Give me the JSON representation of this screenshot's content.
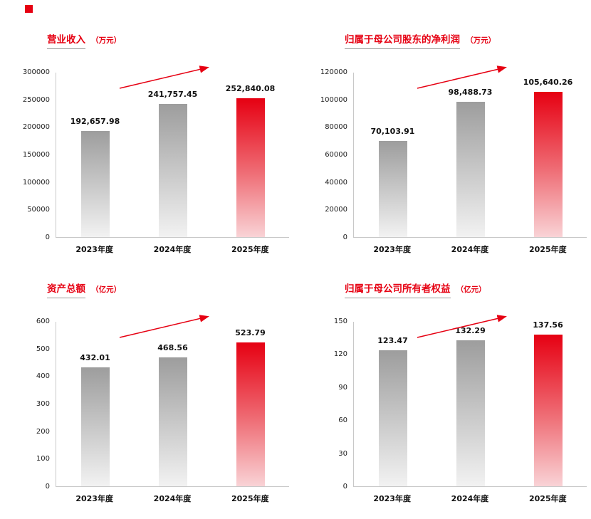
{
  "page": {
    "background": "#ffffff"
  },
  "colors": {
    "accent": "#e60012",
    "title_underline": "#9a9a9a",
    "axis_line": "#c8c8c8",
    "gray_bar_top": "#9d9d9d",
    "gray_bar_bottom": "#f2f2f2",
    "red_bar_top": "#e60012",
    "red_bar_mid": "#ef7078",
    "red_bar_bottom": "#f9d3d6",
    "label_text": "#111111"
  },
  "chart_data": [
    {
      "type": "bar",
      "title": "营业收入",
      "unit": "（万元）",
      "categories": [
        "2023年度",
        "2024年度",
        "2025年度"
      ],
      "values": [
        192657.98,
        241757.45,
        252840.08
      ],
      "value_labels": [
        "192,657.98",
        "241,757.45",
        "252,840.08"
      ],
      "ylim": [
        0,
        300000
      ],
      "yticks": [
        0,
        50000,
        100000,
        150000,
        200000,
        250000,
        300000
      ],
      "ytick_labels": [
        "0",
        "50000",
        "100000",
        "150000",
        "200000",
        "250000",
        "300000"
      ],
      "highlight_index": 2,
      "grid": false,
      "legend": false,
      "trend_arrow": true
    },
    {
      "type": "bar",
      "title": "归属于母公司股东的净利润",
      "unit": "（万元）",
      "categories": [
        "2023年度",
        "2024年度",
        "2025年度"
      ],
      "values": [
        70103.91,
        98488.73,
        105640.26
      ],
      "value_labels": [
        "70,103.91",
        "98,488.73",
        "105,640.26"
      ],
      "ylim": [
        0,
        120000
      ],
      "yticks": [
        0,
        20000,
        40000,
        60000,
        80000,
        100000,
        120000
      ],
      "ytick_labels": [
        "0",
        "20000",
        "40000",
        "60000",
        "80000",
        "100000",
        "120000"
      ],
      "highlight_index": 2,
      "grid": false,
      "legend": false,
      "trend_arrow": true
    },
    {
      "type": "bar",
      "title": "资产总额",
      "unit": "（亿元）",
      "categories": [
        "2023年度",
        "2024年度",
        "2025年度"
      ],
      "values": [
        432.01,
        468.56,
        523.79
      ],
      "value_labels": [
        "432.01",
        "468.56",
        "523.79"
      ],
      "ylim": [
        0,
        600
      ],
      "yticks": [
        0,
        100,
        200,
        300,
        400,
        500,
        600
      ],
      "ytick_labels": [
        "0",
        "100",
        "200",
        "300",
        "400",
        "500",
        "600"
      ],
      "highlight_index": 2,
      "grid": false,
      "legend": false,
      "trend_arrow": true
    },
    {
      "type": "bar",
      "title": "归属于母公司所有者权益",
      "unit": "（亿元）",
      "categories": [
        "2023年度",
        "2024年度",
        "2025年度"
      ],
      "values": [
        123.47,
        132.29,
        137.56
      ],
      "value_labels": [
        "123.47",
        "132.29",
        "137.56"
      ],
      "ylim": [
        0,
        150
      ],
      "yticks": [
        0,
        30,
        60,
        90,
        120,
        150
      ],
      "ytick_labels": [
        "0",
        "30",
        "60",
        "90",
        "120",
        "150"
      ],
      "highlight_index": 2,
      "grid": false,
      "legend": false,
      "trend_arrow": true
    }
  ]
}
